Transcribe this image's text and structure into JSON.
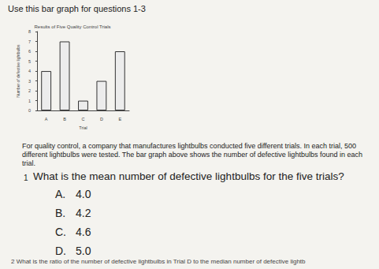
{
  "header": "Use this bar graph for questions 1-3",
  "chart_data": {
    "type": "bar",
    "title": "Results of Five Quality Control Trials",
    "x_label": "Trial",
    "y_label": "Number of defective lightbulbs",
    "categories": [
      "A",
      "B",
      "C",
      "D",
      "E"
    ],
    "values": [
      4,
      7,
      1,
      3,
      6
    ],
    "color": "#ececec",
    "ylim": [
      0,
      8
    ],
    "yticks": [
      0,
      1,
      2,
      3,
      4,
      5,
      6,
      7,
      8
    ],
    "grid": false
  },
  "passage": "For quality control, a company that manufactures lightbulbs conducted five different trials. In each trial, 500 different lightbulbs were tested. The bar graph above shows the number of defective lightbulbs found in each trial.",
  "questions": [
    {
      "number": "1",
      "text": "What is the mean number of defective lightbulbs for the five trials?",
      "options": [
        {
          "letter": "A.",
          "text": "4.0"
        },
        {
          "letter": "B.",
          "text": "4.2"
        },
        {
          "letter": "C.",
          "text": "4.6"
        },
        {
          "letter": "D.",
          "text": "5.0"
        }
      ]
    },
    {
      "number": "2",
      "text": "What is the ratio of the number of defective lightbulbs in Trial D to the median number of defective lightb"
    }
  ]
}
